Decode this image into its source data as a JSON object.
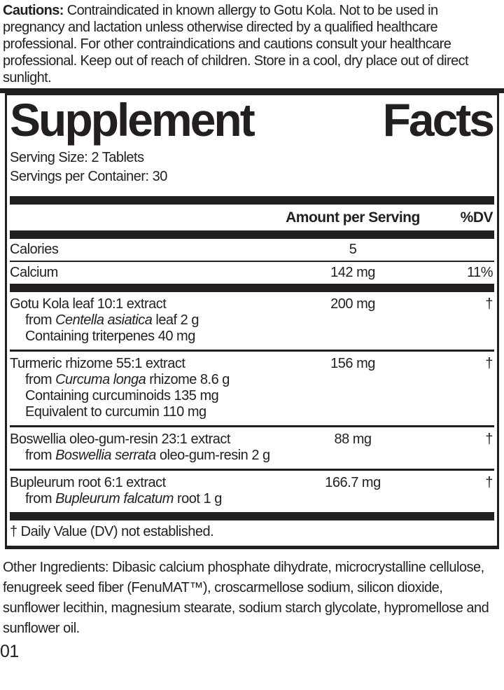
{
  "colors": {
    "ink": "#231f20",
    "background": "#ffffff"
  },
  "cautions": {
    "label": "Cautions:",
    "text": " Contraindicated in known allergy to Gotu Kola. Not to be used in pregnancy and lactation unless otherwise directed by a qualified healthcare professional. For other contraindications and cautions consult your healthcare professional. Keep out of reach of children. Store in a cool, dry place out of direct sunlight."
  },
  "panel": {
    "title_word1": "Supplement",
    "title_word2": "Facts",
    "serving_size": "Serving Size: 2 Tablets",
    "servings_per_container": "Servings per Container: 30",
    "header": {
      "amount": "Amount per Serving",
      "dv": "%DV"
    },
    "nutrients": [
      {
        "name": "Calories",
        "amount": "5",
        "dv": ""
      },
      {
        "name": "Calcium",
        "amount": "142 mg",
        "dv": "11%"
      }
    ],
    "ingredients": [
      {
        "name": "Gotu Kola leaf 10:1 extract",
        "amount": "200 mg",
        "dv": "†",
        "details": [
          {
            "pre": "from ",
            "italic": "Centella asiatica",
            "post": " leaf 2 g"
          },
          {
            "pre": "Containing triterpenes 40 mg",
            "italic": "",
            "post": ""
          }
        ]
      },
      {
        "name": "Turmeric rhizome 55:1 extract",
        "amount": "156 mg",
        "dv": "†",
        "details": [
          {
            "pre": "from ",
            "italic": "Curcuma longa",
            "post": " rhizome 8.6 g"
          },
          {
            "pre": "Containing curcuminoids 135 mg",
            "italic": "",
            "post": ""
          },
          {
            "pre": "Equivalent to curcumin 110 mg",
            "italic": "",
            "post": ""
          }
        ]
      },
      {
        "name": "Boswellia oleo-gum-resin 23:1 extract",
        "amount": "88 mg",
        "dv": "†",
        "details": [
          {
            "pre": "from ",
            "italic": "Boswellia serrata",
            "post": " oleo-gum-resin 2 g"
          }
        ]
      },
      {
        "name": "Bupleurum root 6:1 extract",
        "amount": "166.7 mg",
        "dv": "†",
        "details": [
          {
            "pre": "from ",
            "italic": "Bupleurum falcatum",
            "post": " root 1 g"
          }
        ]
      }
    ],
    "footnote": "† Daily Value (DV) not established."
  },
  "other_ingredients": "Other Ingredients: Dibasic calcium phosphate dihydrate, microcrystalline cellulose, fenugreek seed fiber (FenuMAT™), croscarmellose sodium, silicon dioxide, sunflower lecithin, magnesium stearate, sodium starch glycolate, hypromellose and sunflower oil.",
  "code": "01"
}
